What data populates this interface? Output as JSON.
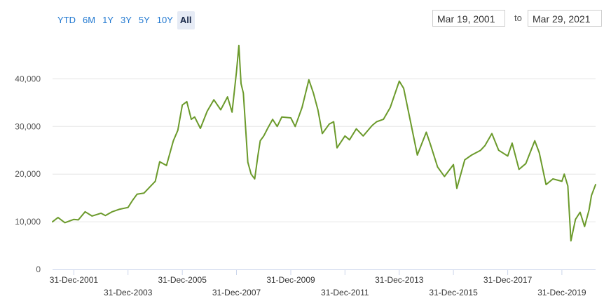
{
  "range_selector": {
    "buttons": [
      {
        "label": "YTD",
        "active": false
      },
      {
        "label": "6M",
        "active": false
      },
      {
        "label": "1Y",
        "active": false
      },
      {
        "label": "3Y",
        "active": false
      },
      {
        "label": "5Y",
        "active": false
      },
      {
        "label": "10Y",
        "active": false
      },
      {
        "label": "All",
        "active": true
      }
    ],
    "from_date": "Mar 19, 2001",
    "to_label": "to",
    "to_date": "Mar 29, 2021"
  },
  "colors": {
    "line": "#6b9a2b",
    "grid": "#e6e6e6",
    "axis": "#ccd6eb",
    "button_active_bg": "#e6ebf5",
    "button_text": "#1f77d0"
  },
  "chart_data": {
    "type": "line",
    "title": "",
    "xlabel": "",
    "ylabel": "",
    "ylim": [
      0,
      48000
    ],
    "yticks": [
      0,
      10000,
      20000,
      30000,
      40000
    ],
    "ytick_labels": [
      "0",
      "10,000",
      "20,000",
      "30,000",
      "40,000"
    ],
    "xlim": [
      "2001-03-19",
      "2021-03-29"
    ],
    "xticks": [
      "2001-12-31",
      "2003-12-31",
      "2005-12-31",
      "2007-12-31",
      "2009-12-31",
      "2011-12-31",
      "2013-12-31",
      "2015-12-31",
      "2017-12-31",
      "2019-12-31"
    ],
    "xtick_labels": [
      "31-Dec-2001",
      "31-Dec-2003",
      "31-Dec-2005",
      "31-Dec-2007",
      "31-Dec-2009",
      "31-Dec-2011",
      "31-Dec-2013",
      "31-Dec-2015",
      "31-Dec-2017",
      "31-Dec-2019"
    ],
    "grid": true,
    "legend": "none",
    "series": [
      {
        "x": [
          "2001-03-19",
          "2001-06-01",
          "2001-09-01",
          "2001-12-31",
          "2002-03-01",
          "2002-06-01",
          "2002-09-01",
          "2002-12-31",
          "2003-03-01",
          "2003-06-01",
          "2003-09-01",
          "2003-12-31",
          "2004-03-01",
          "2004-05-01",
          "2004-08-01",
          "2004-11-01",
          "2005-01-01",
          "2005-03-01",
          "2005-06-01",
          "2005-09-01",
          "2005-11-01",
          "2005-12-31",
          "2006-03-01",
          "2006-05-01",
          "2006-06-15",
          "2006-09-01",
          "2006-12-01",
          "2007-03-01",
          "2007-06-01",
          "2007-09-01",
          "2007-11-01",
          "2007-12-31",
          "2008-02-01",
          "2008-03-01",
          "2008-04-01",
          "2008-06-01",
          "2008-07-15",
          "2008-09-01",
          "2008-10-15",
          "2008-11-15",
          "2009-01-01",
          "2009-03-01",
          "2009-05-01",
          "2009-07-01",
          "2009-09-01",
          "2009-12-31",
          "2010-03-01",
          "2010-06-01",
          "2010-09-01",
          "2010-11-01",
          "2010-12-31",
          "2011-03-01",
          "2011-06-01",
          "2011-08-01",
          "2011-09-15",
          "2011-12-31",
          "2012-03-01",
          "2012-06-01",
          "2012-09-01",
          "2012-12-31",
          "2013-03-01",
          "2013-06-01",
          "2013-09-01",
          "2013-12-31",
          "2014-03-01",
          "2014-06-01",
          "2014-09-01",
          "2014-12-31",
          "2015-03-01",
          "2015-06-01",
          "2015-09-01",
          "2015-12-31",
          "2016-02-15",
          "2016-06-01",
          "2016-09-01",
          "2016-12-31",
          "2017-03-01",
          "2017-06-01",
          "2017-09-01",
          "2017-12-31",
          "2018-03-01",
          "2018-06-01",
          "2018-09-01",
          "2018-12-31",
          "2019-03-01",
          "2019-06-01",
          "2019-09-01",
          "2019-12-31",
          "2020-02-01",
          "2020-03-20",
          "2020-05-01",
          "2020-07-01",
          "2020-09-01",
          "2020-11-01",
          "2020-12-31",
          "2021-02-01",
          "2021-03-29"
        ],
        "values": [
          10000,
          10900,
          9800,
          10500,
          10400,
          12100,
          11200,
          11800,
          11300,
          12100,
          12600,
          13000,
          14500,
          15800,
          16000,
          17500,
          18500,
          22600,
          21800,
          27000,
          29200,
          34500,
          35200,
          31500,
          32000,
          29600,
          33200,
          35600,
          33500,
          36200,
          33000,
          41500,
          47000,
          39000,
          37000,
          22500,
          20000,
          19000,
          24000,
          27000,
          28000,
          29800,
          31500,
          30000,
          32000,
          31800,
          30000,
          34000,
          39800,
          37000,
          33500,
          28500,
          30500,
          31000,
          25500,
          28000,
          27200,
          29500,
          28000,
          30200,
          31000,
          31500,
          34000,
          39500,
          38000,
          31000,
          24000,
          28800,
          26000,
          21500,
          19500,
          22000,
          17000,
          23000,
          24000,
          25000,
          26000,
          28500,
          25000,
          23800,
          26500,
          21000,
          22200,
          27000,
          24500,
          17800,
          19000,
          18500,
          20000,
          17500,
          6000,
          10500,
          12000,
          9000,
          12500,
          15500,
          17800
        ]
      }
    ]
  }
}
